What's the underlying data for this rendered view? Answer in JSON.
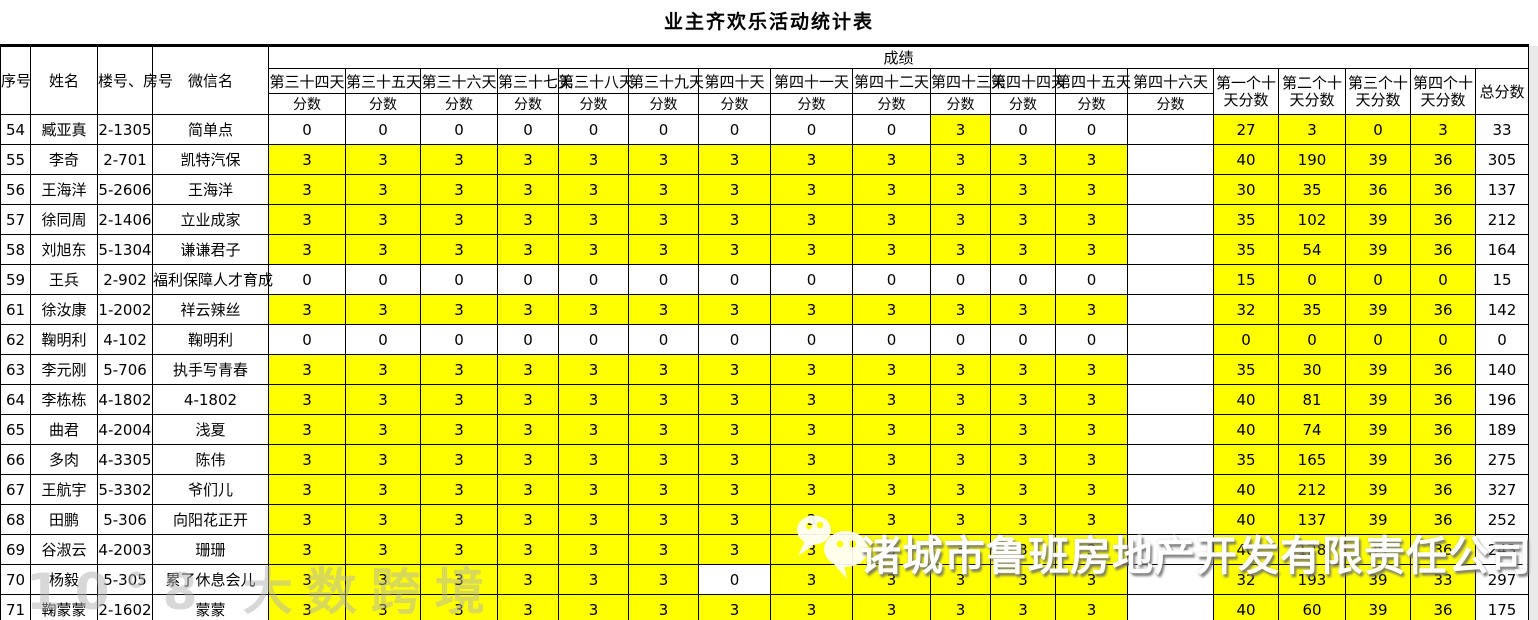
{
  "title": "业主齐欢乐活动统计表",
  "table": {
    "headers": {
      "col_no": "序号",
      "col_name": "姓名",
      "col_room": "楼号、房号",
      "col_wechat": "微信名",
      "score_group": "成绩",
      "day_columns": [
        "第三十四天",
        "第三十五天",
        "第三十六天",
        "第三十七天",
        "第三十八天",
        "第三十九天",
        "第四十天",
        "第四十一天",
        "第四十二天",
        "第四十三天",
        "第四十四天",
        "第四十五天",
        "第四十六天"
      ],
      "day_subheader": "分数",
      "summary_columns": [
        "第一个十天分数",
        "第二个十天分数",
        "第三个十天分数",
        "第四个十天分数"
      ],
      "total_column": "总分数"
    },
    "rows": [
      {
        "no": "54",
        "name": "臧亚真",
        "room": "2-1305",
        "wechat": "简单点",
        "days": [
          "0",
          "0",
          "0",
          "0",
          "0",
          "0",
          "0",
          "0",
          "0",
          "3",
          "0",
          "0",
          ""
        ],
        "tens": [
          "27",
          "3",
          "0",
          "3"
        ],
        "total": "33"
      },
      {
        "no": "55",
        "name": "李奇",
        "room": "2-701",
        "wechat": "凯特汽保",
        "days": [
          "3",
          "3",
          "3",
          "3",
          "3",
          "3",
          "3",
          "3",
          "3",
          "3",
          "3",
          "3",
          ""
        ],
        "tens": [
          "40",
          "190",
          "39",
          "36"
        ],
        "total": "305"
      },
      {
        "no": "56",
        "name": "王海洋",
        "room": "5-2606",
        "wechat": "王海洋",
        "days": [
          "3",
          "3",
          "3",
          "3",
          "3",
          "3",
          "3",
          "3",
          "3",
          "3",
          "3",
          "3",
          ""
        ],
        "tens": [
          "30",
          "35",
          "36",
          "36"
        ],
        "total": "137"
      },
      {
        "no": "57",
        "name": "徐同周",
        "room": "2-1406",
        "wechat": "立业成家",
        "days": [
          "3",
          "3",
          "3",
          "3",
          "3",
          "3",
          "3",
          "3",
          "3",
          "3",
          "3",
          "3",
          ""
        ],
        "tens": [
          "35",
          "102",
          "39",
          "36"
        ],
        "total": "212"
      },
      {
        "no": "58",
        "name": "刘旭东",
        "room": "5-1304",
        "wechat": "谦谦君子",
        "days": [
          "3",
          "3",
          "3",
          "3",
          "3",
          "3",
          "3",
          "3",
          "3",
          "3",
          "3",
          "3",
          ""
        ],
        "tens": [
          "35",
          "54",
          "39",
          "36"
        ],
        "total": "164"
      },
      {
        "no": "59",
        "name": "王兵",
        "room": "2-902",
        "wechat": "福利保障人才育成",
        "days": [
          "0",
          "0",
          "0",
          "0",
          "0",
          "0",
          "0",
          "0",
          "0",
          "0",
          "0",
          "0",
          ""
        ],
        "tens": [
          "15",
          "0",
          "0",
          "0"
        ],
        "total": "15"
      },
      {
        "no": "61",
        "name": "徐汝康",
        "room": "1-2002",
        "wechat": "祥云辣丝",
        "days": [
          "3",
          "3",
          "3",
          "3",
          "3",
          "3",
          "3",
          "3",
          "3",
          "3",
          "3",
          "3",
          ""
        ],
        "tens": [
          "32",
          "35",
          "39",
          "36"
        ],
        "total": "142"
      },
      {
        "no": "62",
        "name": "鞠明利",
        "room": "4-102",
        "wechat": "鞠明利",
        "days": [
          "0",
          "0",
          "0",
          "0",
          "0",
          "0",
          "0",
          "0",
          "0",
          "0",
          "0",
          "0",
          ""
        ],
        "tens": [
          "0",
          "0",
          "0",
          "0"
        ],
        "total": "0"
      },
      {
        "no": "63",
        "name": "李元刚",
        "room": "5-706",
        "wechat": "执手写青春",
        "days": [
          "3",
          "3",
          "3",
          "3",
          "3",
          "3",
          "3",
          "3",
          "3",
          "3",
          "3",
          "3",
          ""
        ],
        "tens": [
          "35",
          "30",
          "39",
          "36"
        ],
        "total": "140"
      },
      {
        "no": "64",
        "name": "李栋栋",
        "room": "4-1802",
        "wechat": "4-1802",
        "days": [
          "3",
          "3",
          "3",
          "3",
          "3",
          "3",
          "3",
          "3",
          "3",
          "3",
          "3",
          "3",
          ""
        ],
        "tens": [
          "40",
          "81",
          "39",
          "36"
        ],
        "total": "196"
      },
      {
        "no": "65",
        "name": "曲君",
        "room": "4-2004",
        "wechat": "浅夏",
        "days": [
          "3",
          "3",
          "3",
          "3",
          "3",
          "3",
          "3",
          "3",
          "3",
          "3",
          "3",
          "3",
          ""
        ],
        "tens": [
          "40",
          "74",
          "39",
          "36"
        ],
        "total": "189"
      },
      {
        "no": "66",
        "name": "多肉",
        "room": "4-3305",
        "wechat": "陈伟",
        "days": [
          "3",
          "3",
          "3",
          "3",
          "3",
          "3",
          "3",
          "3",
          "3",
          "3",
          "3",
          "3",
          ""
        ],
        "tens": [
          "35",
          "165",
          "39",
          "36"
        ],
        "total": "275"
      },
      {
        "no": "67",
        "name": "王航宇",
        "room": "5-3302",
        "wechat": "爷们儿",
        "days": [
          "3",
          "3",
          "3",
          "3",
          "3",
          "3",
          "3",
          "3",
          "3",
          "3",
          "3",
          "3",
          ""
        ],
        "tens": [
          "40",
          "212",
          "39",
          "36"
        ],
        "total": "327"
      },
      {
        "no": "68",
        "name": "田鹏",
        "room": "5-306",
        "wechat": "向阳花正开",
        "days": [
          "3",
          "3",
          "3",
          "3",
          "3",
          "3",
          "3",
          "3",
          "3",
          "3",
          "3",
          "3",
          ""
        ],
        "tens": [
          "40",
          "137",
          "39",
          "36"
        ],
        "total": "252"
      },
      {
        "no": "69",
        "name": "谷淑云",
        "room": "4-2003",
        "wechat": "珊珊",
        "days": [
          "3",
          "3",
          "3",
          "3",
          "3",
          "3",
          "3",
          "3",
          "3",
          "3",
          "3",
          "3",
          ""
        ],
        "tens": [
          "40",
          "128",
          "39",
          "36"
        ],
        "total": "243"
      },
      {
        "no": "70",
        "name": "杨毅",
        "room": "5-305",
        "wechat": "累了休息会儿",
        "days": [
          "3",
          "3",
          "3",
          "3",
          "3",
          "3",
          "0",
          "3",
          "3",
          "3",
          "3",
          "3",
          ""
        ],
        "tens": [
          "32",
          "193",
          "39",
          "33"
        ],
        "total": "297"
      },
      {
        "no": "71",
        "name": "鞠蒙蒙",
        "room": "2-1602",
        "wechat": "蒙蒙",
        "days": [
          "3",
          "3",
          "3",
          "3",
          "3",
          "3",
          "3",
          "3",
          "3",
          "3",
          "3",
          "3",
          ""
        ],
        "tens": [
          "40",
          "60",
          "39",
          "36"
        ],
        "total": "175"
      }
    ]
  },
  "watermarks": {
    "company": "诸城市鲁班房地产开发有限责任公司",
    "bottom_left": "10°8 大数跨境"
  },
  "colors": {
    "cell_highlight": "#ffff00",
    "grid": "#000000",
    "watermark_text": "#ffffff"
  }
}
